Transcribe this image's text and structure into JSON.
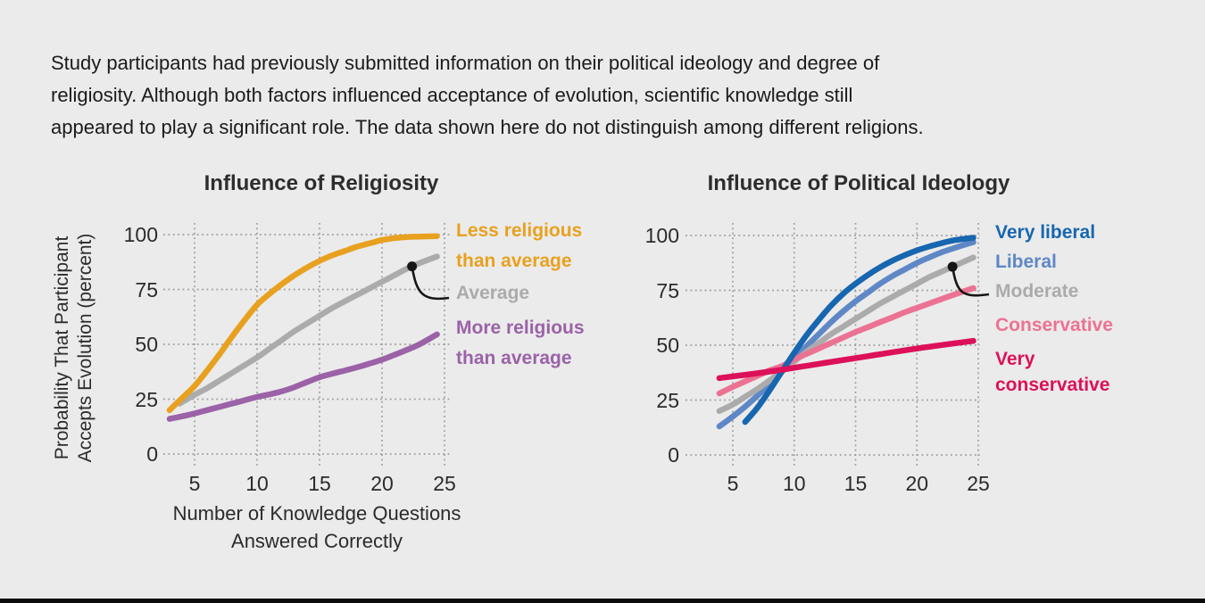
{
  "page": {
    "background": "#ebebeb",
    "intro_lines": [
      "Study participants had previously submitted information on their political ideology and degree of",
      "religiosity. Although both factors influenced acceptance of evolution, scientific knowledge still",
      "appeared to play a significant role. The data shown here do not distinguish among different religions."
    ]
  },
  "chart_data": [
    {
      "type": "line",
      "title": "Influence of Religiosity",
      "xlabel": "Number of Knowledge Questions Answered Correctly",
      "xlabel_lines": [
        "Number of Knowledge Questions",
        "Answered Correctly"
      ],
      "ylabel": "Probability That Participant Accepts Evolution (percent)",
      "ylabel_lines": [
        "Probability That Participant",
        "Accepts Evolution (percent)"
      ],
      "x_ticks": [
        5,
        10,
        15,
        20,
        25
      ],
      "y_ticks": [
        0,
        25,
        50,
        75,
        100
      ],
      "xlim": [
        3,
        25
      ],
      "ylim": [
        0,
        100
      ],
      "grid": "dotted",
      "legend_position": "right",
      "callout": {
        "series": "Average",
        "x": 22.4
      },
      "series": [
        {
          "name": "Less religious than average",
          "label_lines": [
            "Less religious",
            "than average"
          ],
          "color": "#E8A11F",
          "points": [
            [
              3,
              20
            ],
            [
              4,
              25.5
            ],
            [
              5,
              31
            ],
            [
              6,
              38
            ],
            [
              7,
              45.5
            ],
            [
              8,
              53.5
            ],
            [
              9,
              61
            ],
            [
              10,
              68
            ],
            [
              11,
              73
            ],
            [
              12,
              77.5
            ],
            [
              13,
              81.5
            ],
            [
              14,
              85
            ],
            [
              15,
              88
            ],
            [
              16,
              90.5
            ],
            [
              17,
              92.5
            ],
            [
              18,
              94.5
            ],
            [
              19,
              96
            ],
            [
              20,
              97.5
            ],
            [
              21,
              98.4
            ],
            [
              22,
              98.9
            ],
            [
              23,
              99.1
            ],
            [
              24.4,
              99.3
            ]
          ]
        },
        {
          "name": "Average",
          "label_lines": [
            "Average"
          ],
          "color": "#ABABAB",
          "points": [
            [
              3.8,
              23
            ],
            [
              5,
              27
            ],
            [
              6,
              30
            ],
            [
              7,
              33.5
            ],
            [
              8,
              37
            ],
            [
              9,
              40.5
            ],
            [
              10,
              44
            ],
            [
              11,
              48
            ],
            [
              12,
              52
            ],
            [
              13,
              56
            ],
            [
              14,
              59.5
            ],
            [
              15,
              63
            ],
            [
              16,
              66.5
            ],
            [
              17,
              69.5
            ],
            [
              18,
              72.5
            ],
            [
              19,
              75.5
            ],
            [
              20,
              78.5
            ],
            [
              21,
              81.5
            ],
            [
              22,
              84.5
            ],
            [
              23,
              87
            ],
            [
              24.4,
              90
            ]
          ]
        },
        {
          "name": "More religious than average",
          "label_lines": [
            "More religious",
            "than average"
          ],
          "color": "#9B62A7",
          "points": [
            [
              3,
              16
            ],
            [
              4,
              17.2
            ],
            [
              5,
              18.5
            ],
            [
              6,
              20
            ],
            [
              7,
              21.5
            ],
            [
              8,
              23
            ],
            [
              9,
              24.5
            ],
            [
              10,
              26
            ],
            [
              11,
              27.2
            ],
            [
              12,
              28.6
            ],
            [
              13,
              30.5
            ],
            [
              14,
              32.8
            ],
            [
              15,
              35
            ],
            [
              16,
              36.6
            ],
            [
              17,
              38
            ],
            [
              18,
              39.5
            ],
            [
              19,
              41.2
            ],
            [
              20,
              43
            ],
            [
              21,
              45.2
            ],
            [
              22,
              47.5
            ],
            [
              23,
              50
            ],
            [
              24.4,
              54.5
            ]
          ]
        }
      ]
    },
    {
      "type": "line",
      "title": "Influence of Political Ideology",
      "xlabel": "",
      "ylabel": "",
      "x_ticks": [
        5,
        10,
        15,
        20,
        25
      ],
      "y_ticks": [
        0,
        25,
        50,
        75,
        100
      ],
      "xlim": [
        4,
        25
      ],
      "ylim": [
        0,
        100
      ],
      "grid": "dotted",
      "legend_position": "right",
      "callout": {
        "series": "Moderate",
        "x": 22.9
      },
      "series": [
        {
          "name": "Very liberal",
          "label_lines": [
            "Very liberal"
          ],
          "color": "#1766B0",
          "points": [
            [
              6,
              15
            ],
            [
              7,
              21.5
            ],
            [
              8,
              29.5
            ],
            [
              9,
              38
            ],
            [
              10,
              46.5
            ],
            [
              11,
              54.5
            ],
            [
              12,
              61.5
            ],
            [
              13,
              68
            ],
            [
              14,
              73.5
            ],
            [
              15,
              78
            ],
            [
              16,
              82
            ],
            [
              17,
              85.5
            ],
            [
              18,
              88.5
            ],
            [
              19,
              91
            ],
            [
              20,
              93.2
            ],
            [
              21,
              95
            ],
            [
              22,
              96.5
            ],
            [
              23,
              97.8
            ],
            [
              24.6,
              99
            ]
          ]
        },
        {
          "name": "Liberal",
          "label_lines": [
            "Liberal"
          ],
          "color": "#5E87C6",
          "points": [
            [
              3.9,
              13
            ],
            [
              5,
              17.5
            ],
            [
              6,
              22
            ],
            [
              7,
              27
            ],
            [
              8,
              32.5
            ],
            [
              9,
              38
            ],
            [
              10,
              44
            ],
            [
              11,
              49.5
            ],
            [
              12,
              55
            ],
            [
              13,
              60.5
            ],
            [
              14,
              65.5
            ],
            [
              15,
              70
            ],
            [
              16,
              74
            ],
            [
              17,
              78
            ],
            [
              18,
              81.5
            ],
            [
              19,
              84.5
            ],
            [
              20,
              87.5
            ],
            [
              21,
              90
            ],
            [
              22,
              92.3
            ],
            [
              23,
              94.2
            ],
            [
              24.6,
              97
            ]
          ]
        },
        {
          "name": "Moderate",
          "label_lines": [
            "Moderate"
          ],
          "color": "#ABABAB",
          "points": [
            [
              3.9,
              20
            ],
            [
              5,
              23
            ],
            [
              6,
              26.5
            ],
            [
              7,
              30
            ],
            [
              8,
              34
            ],
            [
              9,
              38
            ],
            [
              10,
              42.5
            ],
            [
              11,
              47
            ],
            [
              12,
              51
            ],
            [
              13,
              55
            ],
            [
              14,
              58.5
            ],
            [
              15,
              62
            ],
            [
              16,
              65.5
            ],
            [
              17,
              69
            ],
            [
              18,
              72
            ],
            [
              19,
              75
            ],
            [
              20,
              78
            ],
            [
              21,
              81
            ],
            [
              22,
              83.5
            ],
            [
              23,
              86
            ],
            [
              24.6,
              90
            ]
          ]
        },
        {
          "name": "Conservative",
          "label_lines": [
            "Conservative"
          ],
          "color": "#EC7293",
          "points": [
            [
              3.9,
              28
            ],
            [
              5,
              31
            ],
            [
              6,
              33.5
            ],
            [
              7,
              36
            ],
            [
              8,
              38.5
            ],
            [
              9,
              40.5
            ],
            [
              10,
              43.5
            ],
            [
              11,
              46
            ],
            [
              12,
              48.5
            ],
            [
              13,
              51
            ],
            [
              14,
              53.5
            ],
            [
              15,
              56
            ],
            [
              16,
              58.2
            ],
            [
              17,
              60.5
            ],
            [
              18,
              62.7
            ],
            [
              19,
              65
            ],
            [
              20,
              67
            ],
            [
              21,
              69
            ],
            [
              22,
              71
            ],
            [
              23,
              73
            ],
            [
              24.6,
              76
            ]
          ]
        },
        {
          "name": "Very conservative",
          "label_lines": [
            "Very",
            "conservative"
          ],
          "color": "#DC1159",
          "points": [
            [
              3.9,
              35
            ],
            [
              8,
              38
            ],
            [
              12,
              41.5
            ],
            [
              16,
              45
            ],
            [
              20,
              48.5
            ],
            [
              24.6,
              52
            ]
          ]
        }
      ]
    }
  ]
}
